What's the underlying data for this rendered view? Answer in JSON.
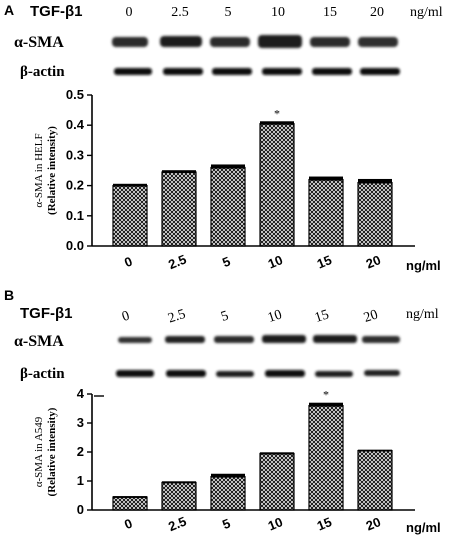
{
  "panels": [
    {
      "letter": "A",
      "treatment_label": "TGF-β1",
      "doses": [
        "0",
        "2.5",
        "5",
        "10",
        "15",
        "20"
      ],
      "unit": "ng/ml",
      "blot_labels": [
        "α-SMA",
        "β-actin"
      ]
    },
    {
      "letter": "B",
      "treatment_label": "TGF-β1",
      "doses": [
        "0",
        "2.5",
        "5",
        "10",
        "15",
        "20"
      ],
      "unit": "ng/ml",
      "blot_labels": [
        "α-SMA",
        "β-actin"
      ]
    }
  ],
  "chart_data": [
    {
      "type": "bar",
      "categories": [
        "0",
        "2.5",
        "5",
        "10",
        "15",
        "20"
      ],
      "values": [
        0.2,
        0.245,
        0.26,
        0.405,
        0.22,
        0.21
      ],
      "errors": [
        0.006,
        0.006,
        0.01,
        0.008,
        0.01,
        0.012
      ],
      "ylabel_line1": "α-SMA in HELF",
      "ylabel_line2": "(Relative intensity)",
      "xlabel": "ng/ml",
      "ylim": [
        0,
        0.5
      ],
      "yticks": [
        "0.0",
        "0.1",
        "0.2",
        "0.3",
        "0.4",
        "0.5"
      ],
      "significance": {
        "category": "10",
        "marker": "*"
      },
      "bar_fill": "crosshatch"
    },
    {
      "type": "bar",
      "categories": [
        "0",
        "2.5",
        "5",
        "10",
        "15",
        "20"
      ],
      "values": [
        0.45,
        0.95,
        1.15,
        1.95,
        3.6,
        2.05
      ],
      "errors": [
        0.03,
        0.04,
        0.1,
        0.04,
        0.1,
        0.03
      ],
      "ylabel_line1": "α-SMA in A549",
      "ylabel_line2": "(Relative intensity)",
      "xlabel": "ng/ml",
      "ylim": [
        0,
        4
      ],
      "yticks": [
        "0",
        "1",
        "2",
        "3",
        "4"
      ],
      "significance": {
        "category": "15",
        "marker": "*"
      },
      "bar_fill": "crosshatch"
    }
  ],
  "colors": {
    "ink": "#000000",
    "band": "#1a1a1a",
    "background": "#ffffff"
  }
}
